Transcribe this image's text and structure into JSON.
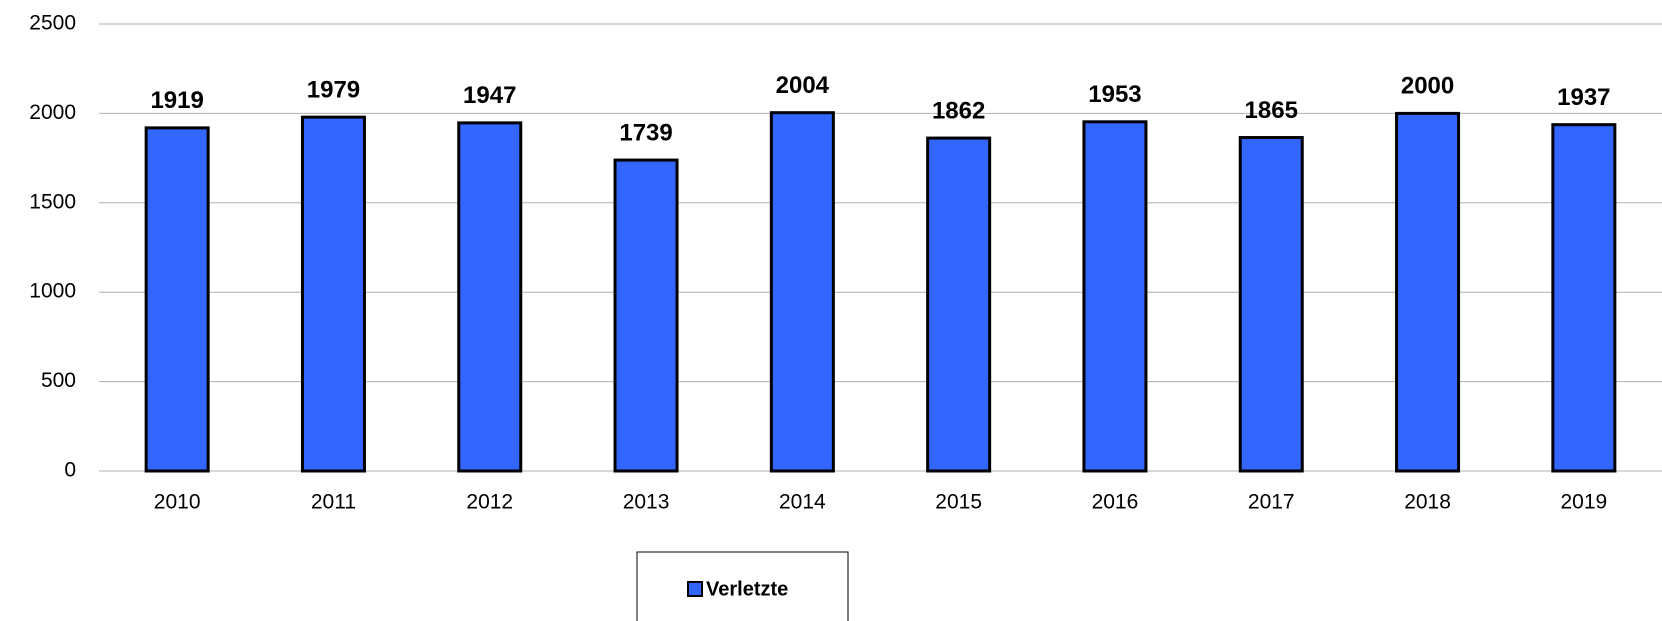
{
  "chart_data": {
    "type": "bar",
    "categories": [
      "2010",
      "2011",
      "2012",
      "2013",
      "2014",
      "2015",
      "2016",
      "2017",
      "2018",
      "2019"
    ],
    "series": [
      {
        "name": "Verletzte",
        "color": "#3366ff",
        "values": [
          1919,
          1979,
          1947,
          1739,
          2004,
          1862,
          1953,
          1865,
          2000,
          1937
        ]
      }
    ],
    "ylim": [
      0,
      2500
    ],
    "yticks": [
      0,
      500,
      1000,
      1500,
      2000,
      2500
    ],
    "grid": true,
    "legend": "bottom"
  }
}
